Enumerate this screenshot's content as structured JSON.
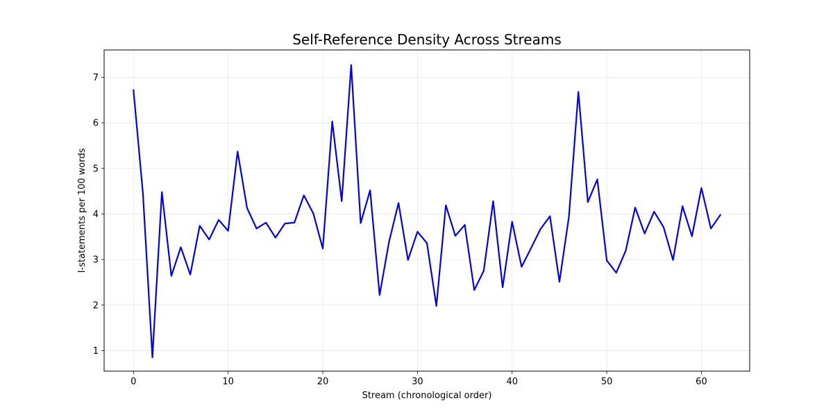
{
  "chart_data": {
    "type": "line",
    "title": "Self-Reference Density Across Streams",
    "xlabel": "Stream (chronological order)",
    "ylabel": "I-statements per 100 words",
    "xlim": [
      -3.1,
      65.1
    ],
    "ylim": [
      0.55,
      7.6
    ],
    "x_ticks": [
      0,
      10,
      20,
      30,
      40,
      50,
      60
    ],
    "y_ticks": [
      1,
      2,
      3,
      4,
      5,
      6,
      7
    ],
    "grid": true,
    "series": [
      {
        "color": "#0000ee",
        "x": [
          0,
          1,
          2,
          3,
          4,
          5,
          6,
          7,
          8,
          9,
          10,
          11,
          12,
          13,
          14,
          15,
          16,
          17,
          18,
          19,
          20,
          21,
          22,
          23,
          24,
          25,
          26,
          27,
          28,
          29,
          30,
          31,
          32,
          33,
          34,
          35,
          36,
          37,
          38,
          39,
          40,
          41,
          42,
          43,
          44,
          45,
          46,
          47,
          48,
          49,
          50,
          51,
          52,
          53,
          54,
          55,
          56,
          57,
          58,
          59,
          60,
          61,
          62
        ],
        "values": [
          6.72,
          4.45,
          0.85,
          4.48,
          2.64,
          3.27,
          2.67,
          3.74,
          3.44,
          3.87,
          3.63,
          5.37,
          4.13,
          3.68,
          3.81,
          3.48,
          3.79,
          3.81,
          4.41,
          4.01,
          3.24,
          6.03,
          4.28,
          7.27,
          3.8,
          4.52,
          2.22,
          3.39,
          4.24,
          2.99,
          3.61,
          3.36,
          1.98,
          4.19,
          3.52,
          3.76,
          2.33,
          2.75,
          4.28,
          2.39,
          3.83,
          2.84,
          3.25,
          3.67,
          3.95,
          2.51,
          3.94,
          6.68,
          4.26,
          4.76,
          2.98,
          2.71,
          3.19,
          4.14,
          3.57,
          4.05,
          3.71,
          2.99,
          4.17,
          3.51,
          4.57,
          3.68,
          3.98
        ]
      }
    ]
  }
}
